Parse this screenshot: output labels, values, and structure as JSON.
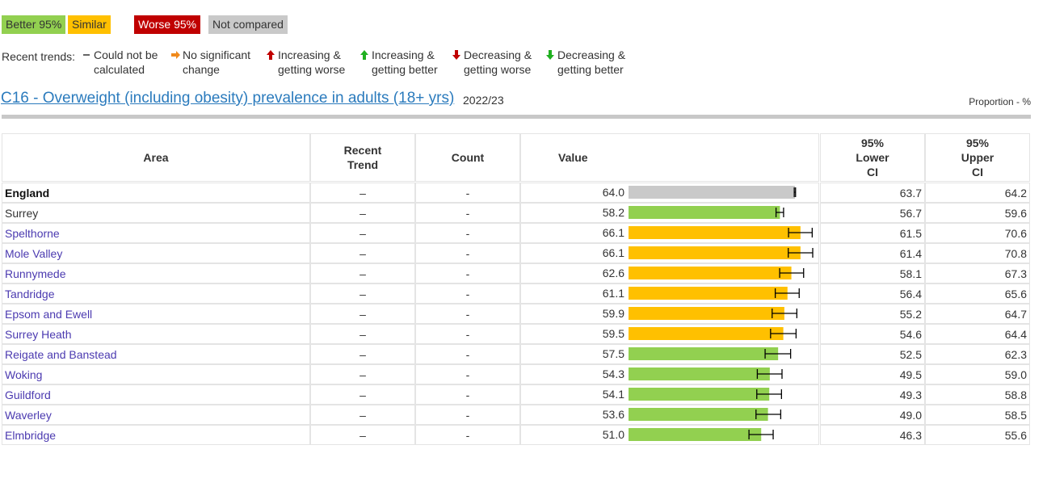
{
  "key": {
    "items": [
      {
        "label": "Better 95%",
        "color": "#92d050",
        "text_color": "#333333"
      },
      {
        "label": "Similar",
        "color": "#ffc000",
        "text_color": "#333333"
      },
      {
        "label": "Worse 95%",
        "color": "#c00000",
        "text_color": "#ffffff"
      },
      {
        "label": "Not compared",
        "color": "#c9c9c9",
        "text_color": "#333333"
      }
    ]
  },
  "trends": {
    "label": "Recent trends:",
    "items": [
      {
        "symbol": "–",
        "lines": [
          "Could not be",
          "calculated"
        ]
      },
      {
        "lines": [
          "No significant",
          "change"
        ]
      },
      {
        "lines": [
          "Increasing &",
          "getting worse"
        ]
      },
      {
        "lines": [
          "Increasing &",
          "getting better"
        ]
      },
      {
        "lines": [
          "Decreasing &",
          "getting worse"
        ]
      },
      {
        "lines": [
          "Decreasing &",
          "getting better"
        ]
      }
    ]
  },
  "indicator": {
    "title": "C16 - Overweight (including obesity) prevalence in adults (18+ yrs)",
    "period": "2022/23",
    "unit": "Proportion - %"
  },
  "table": {
    "headers": [
      "Area",
      "Recent Trend",
      "Count",
      "Value",
      "95% Lower CI",
      "95% Upper CI"
    ],
    "rows": [
      {
        "area": "England",
        "trend": "–",
        "count": "-",
        "value": "64.0",
        "lower": "63.7",
        "upper": "64.2",
        "color": "#c9c9c9"
      },
      {
        "area": "Surrey",
        "trend": "–",
        "count": "-",
        "value": "58.2",
        "lower": "56.7",
        "upper": "59.6",
        "color": "#92d050"
      },
      {
        "area": "Spelthorne",
        "trend": "–",
        "count": "-",
        "value": "66.1",
        "lower": "61.5",
        "upper": "70.6",
        "color": "#ffc000"
      },
      {
        "area": "Mole Valley",
        "trend": "–",
        "count": "-",
        "value": "66.1",
        "lower": "61.4",
        "upper": "70.8",
        "color": "#ffc000"
      },
      {
        "area": "Runnymede",
        "trend": "–",
        "count": "-",
        "value": "62.6",
        "lower": "58.1",
        "upper": "67.3",
        "color": "#ffc000"
      },
      {
        "area": "Tandridge",
        "trend": "–",
        "count": "-",
        "value": "61.1",
        "lower": "56.4",
        "upper": "65.6",
        "color": "#ffc000"
      },
      {
        "area": "Epsom and Ewell",
        "trend": "–",
        "count": "-",
        "value": "59.9",
        "lower": "55.2",
        "upper": "64.7",
        "color": "#ffc000"
      },
      {
        "area": "Surrey Heath",
        "trend": "–",
        "count": "-",
        "value": "59.5",
        "lower": "54.6",
        "upper": "64.4",
        "color": "#ffc000"
      },
      {
        "area": "Reigate and Banstead",
        "trend": "–",
        "count": "-",
        "value": "57.5",
        "lower": "52.5",
        "upper": "62.3",
        "color": "#92d050"
      },
      {
        "area": "Woking",
        "trend": "–",
        "count": "-",
        "value": "54.3",
        "lower": "49.5",
        "upper": "59.0",
        "color": "#92d050"
      },
      {
        "area": "Guildford",
        "trend": "–",
        "count": "-",
        "value": "54.1",
        "lower": "49.3",
        "upper": "58.8",
        "color": "#92d050"
      },
      {
        "area": "Waverley",
        "trend": "–",
        "count": "-",
        "value": "53.6",
        "lower": "49.0",
        "upper": "58.5",
        "color": "#92d050"
      },
      {
        "area": "Elmbridge",
        "trend": "–",
        "count": "-",
        "value": "51.0",
        "lower": "46.3",
        "upper": "55.6",
        "color": "#92d050"
      }
    ]
  }
}
